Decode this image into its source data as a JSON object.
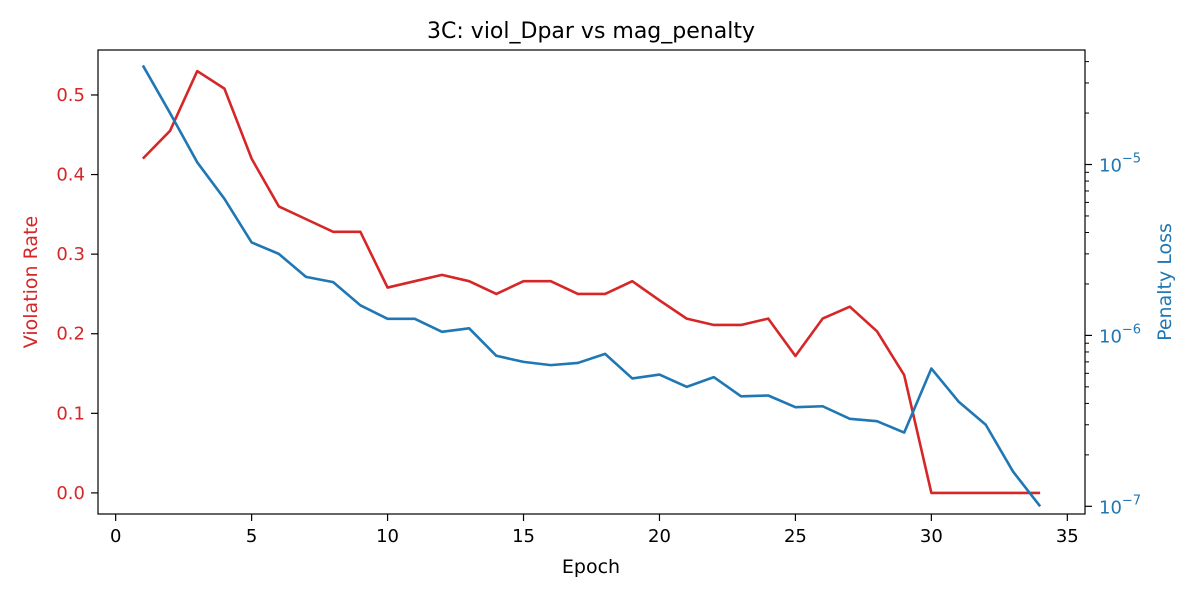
{
  "colors": {
    "left_series": "#d62728",
    "right_series": "#1f77b4",
    "axes": "#000000"
  },
  "chart_data": {
    "type": "line",
    "title": "3C: viol_Dpar vs mag_penalty",
    "xlabel": "Epoch",
    "ylabel_left": "Violation Rate",
    "ylabel_right": "Penalty Loss",
    "xlim": [
      -0.65,
      35.65
    ],
    "ylim_left": [
      -0.0265,
      0.5565
    ],
    "ylim_right_log10": [
      -7.045,
      -4.33
    ],
    "y_right_scale": "log",
    "grid": false,
    "x_ticks": [
      0,
      5,
      10,
      15,
      20,
      25,
      30,
      35
    ],
    "y_left_ticks": [
      0.0,
      0.1,
      0.2,
      0.3,
      0.4,
      0.5
    ],
    "y_left_tick_labels": [
      "0.0",
      "0.1",
      "0.2",
      "0.3",
      "0.4",
      "0.5"
    ],
    "y_right_major_ticks": [
      1e-07,
      1e-06,
      1e-05
    ],
    "y_right_tick_labels": [
      {
        "base": "10",
        "exp": "−7"
      },
      {
        "base": "10",
        "exp": "−6"
      },
      {
        "base": "10",
        "exp": "−5"
      }
    ],
    "x": [
      1,
      2,
      3,
      4,
      5,
      6,
      7,
      8,
      9,
      10,
      11,
      12,
      13,
      14,
      15,
      16,
      17,
      18,
      19,
      20,
      21,
      22,
      23,
      24,
      25,
      26,
      27,
      28,
      29,
      30,
      31,
      32,
      33,
      34
    ],
    "series": [
      {
        "name": "Violation Rate",
        "axis": "left",
        "values": [
          0.42,
          0.455,
          0.53,
          0.508,
          0.42,
          0.36,
          0.344,
          0.328,
          0.328,
          0.258,
          0.266,
          0.274,
          0.266,
          0.25,
          0.266,
          0.266,
          0.25,
          0.25,
          0.266,
          0.242,
          0.219,
          0.211,
          0.211,
          0.219,
          0.172,
          0.219,
          0.234,
          0.203,
          0.148,
          0.0,
          0.0,
          0.0,
          0.0,
          0.0
        ]
      },
      {
        "name": "Penalty Loss",
        "axis": "right",
        "values": [
          3.8e-05,
          2e-05,
          1.03e-05,
          6.3e-06,
          3.5e-06,
          3e-06,
          2.2e-06,
          2.05e-06,
          1.5e-06,
          1.25e-06,
          1.25e-06,
          1.05e-06,
          1.1e-06,
          7.6e-07,
          7e-07,
          6.7e-07,
          6.9e-07,
          7.8e-07,
          5.6e-07,
          5.9e-07,
          5e-07,
          5.7e-07,
          4.4e-07,
          4.45e-07,
          3.8e-07,
          3.85e-07,
          3.25e-07,
          3.15e-07,
          2.7e-07,
          6.4e-07,
          4.1e-07,
          3e-07,
          1.6e-07,
          1e-07
        ]
      }
    ]
  }
}
